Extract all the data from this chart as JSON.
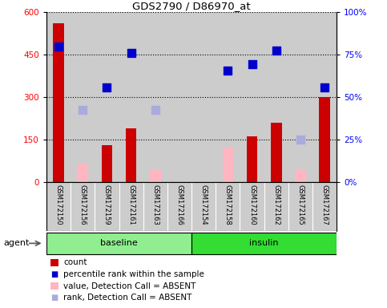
{
  "title": "GDS2790 / D86970_at",
  "samples": [
    "GSM172150",
    "GSM172156",
    "GSM172159",
    "GSM172161",
    "GSM172163",
    "GSM172166",
    "GSM172154",
    "GSM172158",
    "GSM172160",
    "GSM172162",
    "GSM172165",
    "GSM172167"
  ],
  "groups": [
    {
      "name": "baseline",
      "start": 0,
      "end": 6,
      "color": "#90EE90"
    },
    {
      "name": "insulin",
      "start": 6,
      "end": 12,
      "color": "#33DD33"
    }
  ],
  "count_values": [
    560,
    null,
    130,
    190,
    null,
    null,
    null,
    null,
    160,
    210,
    null,
    300
  ],
  "count_absent": [
    null,
    65,
    null,
    null,
    40,
    null,
    null,
    120,
    null,
    null,
    40,
    null
  ],
  "rank_values": [
    480,
    null,
    335,
    455,
    null,
    null,
    null,
    395,
    415,
    465,
    null,
    335
  ],
  "rank_absent": [
    null,
    255,
    null,
    null,
    255,
    null,
    null,
    null,
    null,
    null,
    150,
    null
  ],
  "ylim_left": [
    0,
    600
  ],
  "ylim_right": [
    0,
    100
  ],
  "left_ticks": [
    0,
    150,
    300,
    450,
    600
  ],
  "right_ticks": [
    0,
    25,
    50,
    75,
    100
  ],
  "right_tick_labels": [
    "0%",
    "25%",
    "50%",
    "75%",
    "100%"
  ],
  "count_color": "#CC0000",
  "count_absent_color": "#FFB6C1",
  "rank_color": "#0000CC",
  "rank_absent_color": "#AAAADD",
  "bar_width": 0.45,
  "dot_size": 55,
  "legend_items": [
    {
      "label": "count",
      "color": "#CC0000",
      "type": "bar"
    },
    {
      "label": "percentile rank within the sample",
      "color": "#0000CC",
      "type": "dot"
    },
    {
      "label": "value, Detection Call = ABSENT",
      "color": "#FFB6C1",
      "type": "bar"
    },
    {
      "label": "rank, Detection Call = ABSENT",
      "color": "#AAAADD",
      "type": "dot"
    }
  ],
  "agent_label": "agent",
  "background_color": "#FFFFFF",
  "plot_bg_color": "#CCCCCC"
}
